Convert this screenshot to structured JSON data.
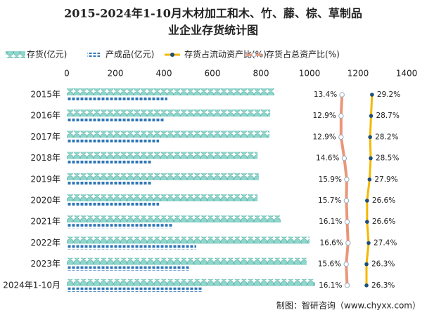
{
  "chart_data": {
    "type": "bar",
    "title": "2015-2024年1-10月木材加工和木、竹、藤、棕、草制品",
    "subtitle": "业企业存货统计图",
    "categories": [
      "2015年",
      "2016年",
      "2017年",
      "2018年",
      "2019年",
      "2020年",
      "2021年",
      "2022年",
      "2023年",
      "2024年1-10月"
    ],
    "xlim": [
      0,
      1400
    ],
    "xticks": [
      0,
      200,
      400,
      600,
      800,
      1000,
      1200,
      1400
    ],
    "series": [
      {
        "name": "存货(亿元)",
        "color": "#7ecfc4",
        "values": [
          855,
          838,
          835,
          786,
          791,
          786,
          881,
          1000,
          988,
          1023
        ]
      },
      {
        "name": "产成品(亿元)",
        "color": "#2e75b6",
        "values": [
          414,
          400,
          380,
          351,
          351,
          380,
          438,
          533,
          507,
          559
        ]
      },
      {
        "name": "存货占流动资产比(%)",
        "type": "line",
        "color": "#f5b800",
        "label_color": "#1f4e79",
        "values": [
          29.2,
          28.7,
          28.2,
          28.5,
          27.9,
          26.6,
          26.6,
          27.4,
          26.3,
          26.3
        ],
        "value_labels": [
          "29.2%",
          "28.7%",
          "28.2%",
          "28.5%",
          "27.9%",
          "26.6%",
          "26.6%",
          "27.4%",
          "26.3%",
          "26.3%"
        ]
      },
      {
        "name": "存货占总资产比(%)",
        "type": "line",
        "color": "#e9967a",
        "label_color": "#c00000",
        "values": [
          13.4,
          12.9,
          12.9,
          14.6,
          15.9,
          15.7,
          16.1,
          16.6,
          15.6,
          16.1
        ],
        "value_labels": [
          "13.4%",
          "12.9%",
          "12.9%",
          "14.6%",
          "15.9%",
          "15.7%",
          "16.1%",
          "16.6%",
          "15.6%",
          "16.1%"
        ]
      }
    ],
    "source": "制图：智研咨询（www.chyxx.com）"
  }
}
